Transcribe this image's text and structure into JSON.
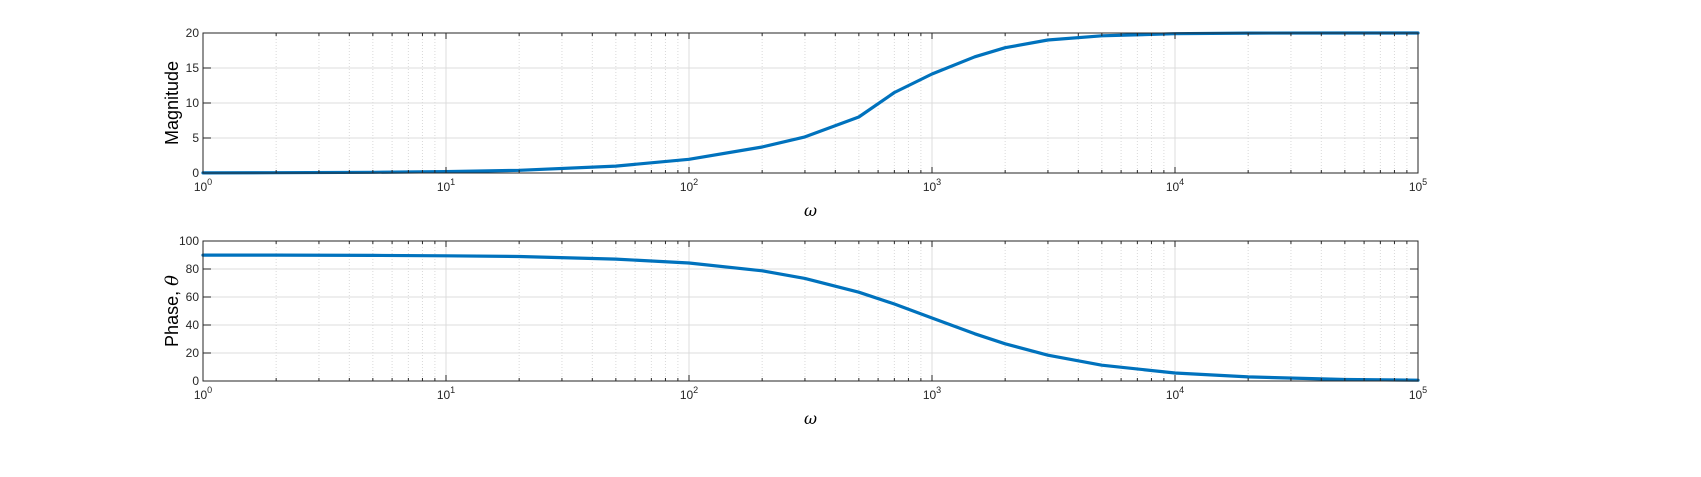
{
  "chart_data": [
    {
      "type": "line",
      "xlabel": "ω",
      "ylabel": "Magnitude",
      "xscale": "log",
      "xlim": [
        1,
        100000
      ],
      "ylim": [
        0,
        20
      ],
      "xticks": [
        {
          "base": "10",
          "exp": "0"
        },
        {
          "base": "10",
          "exp": "1"
        },
        {
          "base": "10",
          "exp": "2"
        },
        {
          "base": "10",
          "exp": "3"
        },
        {
          "base": "10",
          "exp": "4"
        },
        {
          "base": "10",
          "exp": "5"
        }
      ],
      "yticks": [
        "0",
        "5",
        "10",
        "15",
        "20"
      ],
      "grid": true,
      "color": "#0072BD",
      "series": [
        {
          "x": [
            1,
            2,
            5,
            10,
            20,
            50,
            100,
            200,
            300,
            500,
            700,
            1000,
            1500,
            2000,
            3000,
            5000,
            10000,
            20000,
            50000,
            100000
          ],
          "values": [
            0.02,
            0.04,
            0.1,
            0.2,
            0.39,
            0.98,
            1.96,
            3.71,
            5.16,
            8.0,
            11.5,
            14.14,
            16.6,
            17.9,
            19.0,
            19.6,
            19.9,
            19.98,
            20.0,
            20.0
          ]
        }
      ]
    },
    {
      "type": "line",
      "xlabel": "ω",
      "ylabel_text": "Phase, ",
      "ylabel_symbol": "θ",
      "xscale": "log",
      "xlim": [
        1,
        100000
      ],
      "ylim": [
        0,
        100
      ],
      "xticks": [
        {
          "base": "10",
          "exp": "0"
        },
        {
          "base": "10",
          "exp": "1"
        },
        {
          "base": "10",
          "exp": "2"
        },
        {
          "base": "10",
          "exp": "3"
        },
        {
          "base": "10",
          "exp": "4"
        },
        {
          "base": "10",
          "exp": "5"
        }
      ],
      "yticks": [
        "0",
        "20",
        "40",
        "60",
        "80",
        "100"
      ],
      "grid": true,
      "color": "#0072BD",
      "series": [
        {
          "x": [
            1,
            2,
            5,
            10,
            20,
            50,
            100,
            200,
            300,
            500,
            700,
            1000,
            1500,
            2000,
            3000,
            5000,
            10000,
            20000,
            50000,
            100000
          ],
          "values": [
            89.9,
            89.9,
            89.7,
            89.4,
            88.9,
            87.1,
            84.3,
            78.7,
            73.3,
            63.4,
            55.0,
            45.0,
            33.7,
            26.6,
            18.4,
            11.3,
            5.7,
            2.9,
            1.1,
            0.6
          ]
        }
      ]
    }
  ]
}
